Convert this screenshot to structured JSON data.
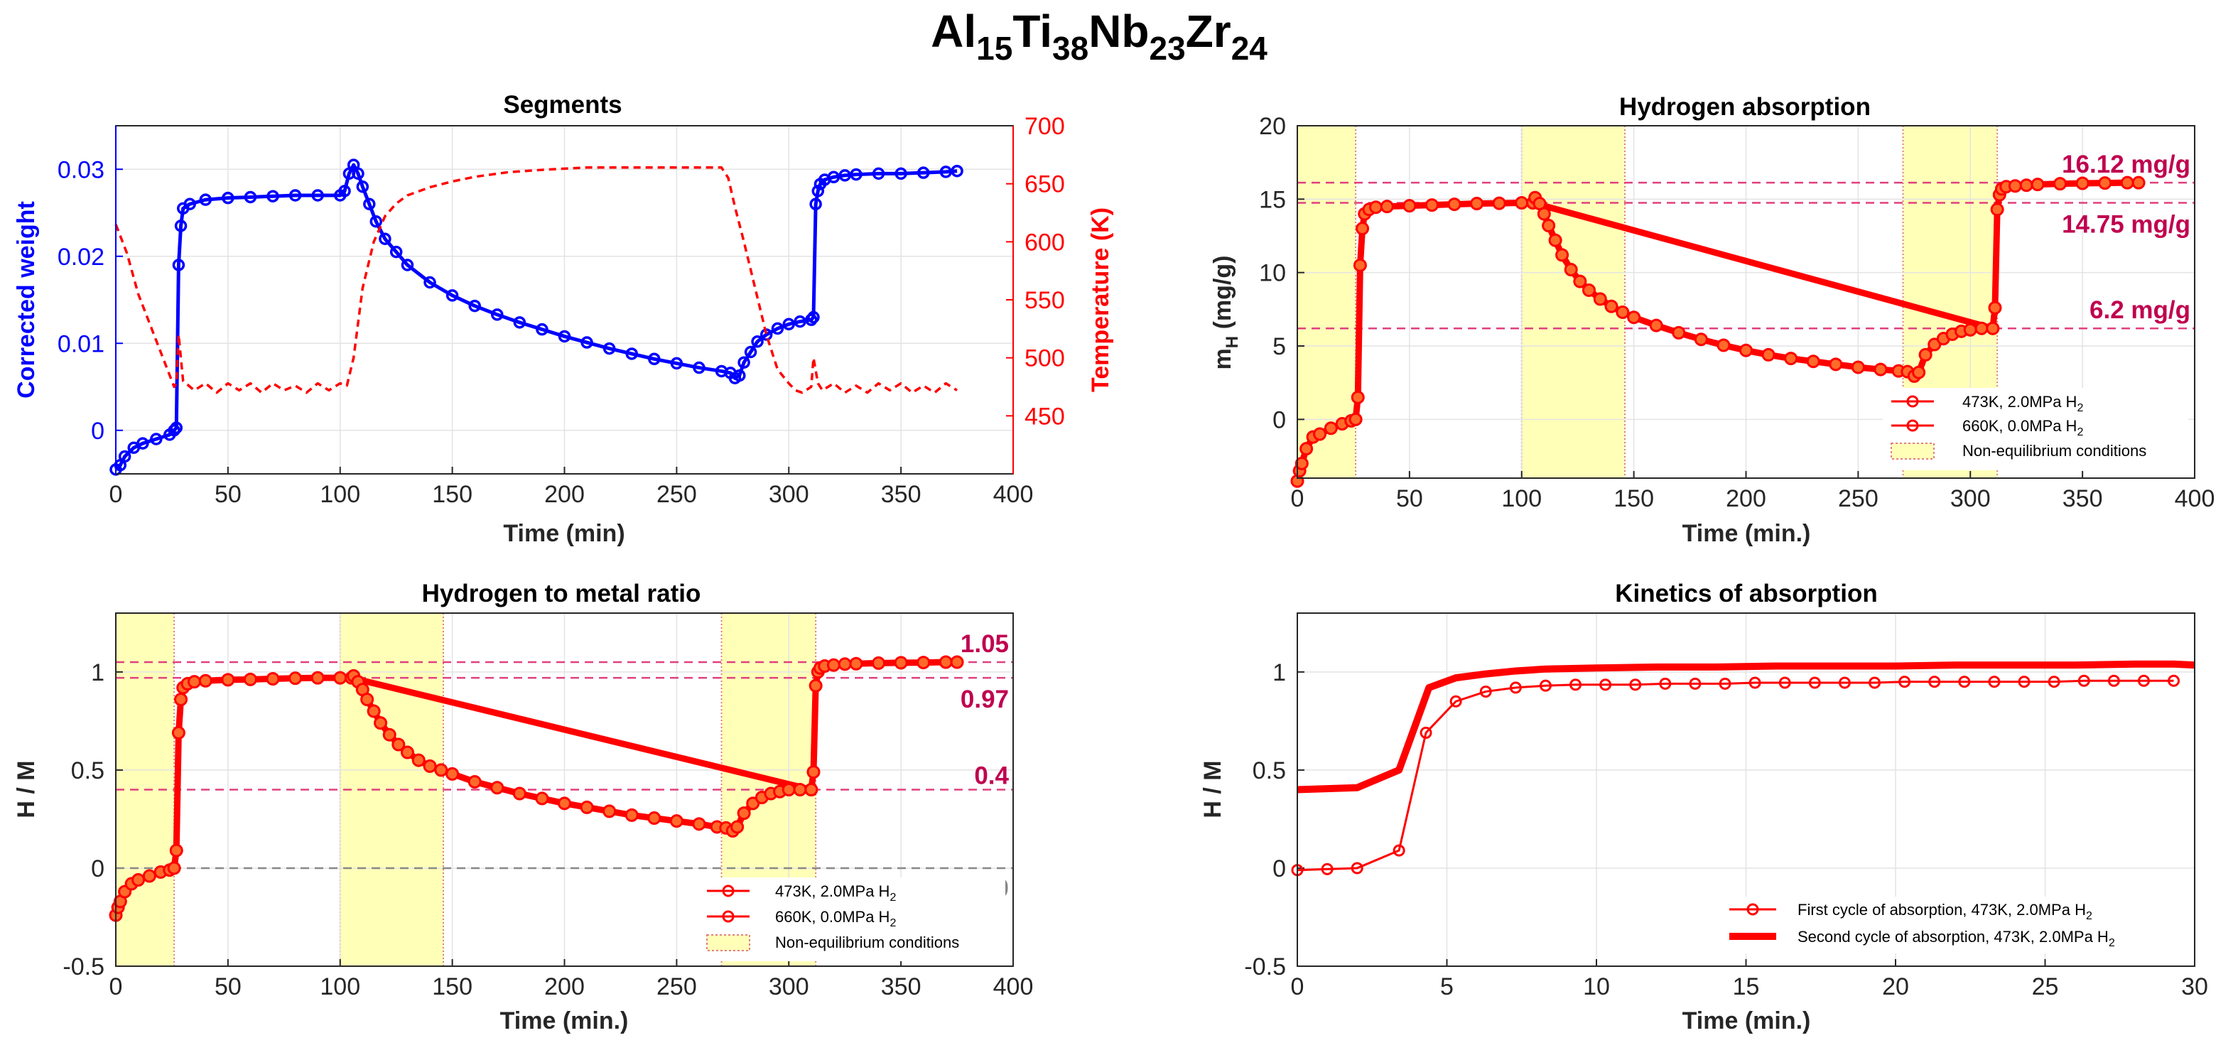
{
  "figure": {
    "title": {
      "base": "Al",
      "s1": "15",
      "el2": "Ti",
      "s2": "38",
      "el3": "Nb",
      "s3": "23",
      "el4": "Zr",
      "s4": "24"
    }
  },
  "colors": {
    "blue": "#0000ff",
    "red": "#ff0000",
    "magenta": "#e0407f",
    "annotation": "#c0004f",
    "gray": "#888888",
    "shade": "#ffffb8",
    "shade_edge": "#e08080"
  },
  "chart_data": [
    {
      "id": "segments",
      "type": "line",
      "title": "Segments",
      "xlabel": "Time (min)",
      "ylabel": "Corrected weight",
      "y2label": "Temperature (K)",
      "xlim": [
        0,
        400
      ],
      "ylim": [
        -0.005,
        0.035
      ],
      "y2lim": [
        400,
        700
      ],
      "xticks": [
        0,
        50,
        100,
        150,
        200,
        250,
        300,
        350,
        400
      ],
      "yticks": [
        0,
        0.01,
        0.02,
        0.03
      ],
      "ytick_labels": [
        "0",
        "0.01",
        "0.02",
        "0.03"
      ],
      "y2ticks": [
        450,
        500,
        550,
        600,
        650,
        700
      ],
      "grid": true,
      "series": [
        {
          "axis": "left",
          "color": "blue",
          "marker": "circle",
          "style": "solid",
          "x": [
            0,
            2,
            4,
            8,
            12,
            18,
            24,
            26,
            27,
            28,
            29,
            30,
            33,
            40,
            50,
            60,
            70,
            80,
            90,
            100,
            102,
            104,
            106,
            108,
            110,
            113,
            116,
            120,
            125,
            130,
            140,
            150,
            160,
            170,
            180,
            190,
            200,
            210,
            220,
            230,
            240,
            250,
            260,
            270,
            274,
            276,
            278,
            280,
            283,
            286,
            290,
            295,
            300,
            305,
            310,
            311,
            312,
            313,
            314,
            316,
            320,
            325,
            330,
            340,
            350,
            360,
            370,
            375
          ],
          "y": [
            -0.0045,
            -0.004,
            -0.003,
            -0.002,
            -0.0015,
            -0.001,
            -0.0005,
            0,
            0.0003,
            0.019,
            0.0235,
            0.0255,
            0.026,
            0.0265,
            0.0267,
            0.0268,
            0.0269,
            0.027,
            0.027,
            0.027,
            0.0275,
            0.0295,
            0.0305,
            0.0295,
            0.028,
            0.026,
            0.024,
            0.022,
            0.0205,
            0.019,
            0.017,
            0.0155,
            0.0143,
            0.0133,
            0.0124,
            0.0116,
            0.0108,
            0.0101,
            0.0094,
            0.0088,
            0.0082,
            0.0077,
            0.0072,
            0.0068,
            0.0066,
            0.006,
            0.0063,
            0.0078,
            0.009,
            0.0102,
            0.011,
            0.0117,
            0.0122,
            0.0125,
            0.0127,
            0.013,
            0.026,
            0.0275,
            0.0283,
            0.0288,
            0.0291,
            0.0293,
            0.0294,
            0.0295,
            0.0295,
            0.0296,
            0.0297,
            0.0298
          ]
        },
        {
          "axis": "right",
          "color": "red",
          "marker": "none",
          "style": "dashed",
          "x": [
            0,
            5,
            10,
            15,
            20,
            24,
            26,
            27,
            28,
            30,
            35,
            40,
            45,
            50,
            55,
            60,
            65,
            70,
            75,
            80,
            85,
            90,
            95,
            100,
            103,
            106,
            110,
            115,
            120,
            125,
            130,
            140,
            150,
            160,
            175,
            190,
            210,
            230,
            250,
            270,
            273,
            276,
            280,
            285,
            290,
            295,
            300,
            303,
            306,
            310,
            311,
            313,
            315,
            320,
            325,
            330,
            335,
            340,
            345,
            350,
            355,
            360,
            365,
            370,
            375
          ],
          "y": [
            615,
            590,
            555,
            530,
            505,
            485,
            475,
            478,
            520,
            480,
            472,
            478,
            470,
            478,
            472,
            478,
            470,
            478,
            472,
            476,
            470,
            478,
            472,
            478,
            476,
            500,
            560,
            600,
            622,
            633,
            640,
            647,
            652,
            656,
            660,
            662,
            664,
            664,
            664,
            664,
            655,
            630,
            600,
            560,
            520,
            490,
            478,
            472,
            470,
            475,
            500,
            478,
            472,
            478,
            470,
            476,
            470,
            478,
            472,
            478,
            470,
            476,
            470,
            478,
            472
          ]
        }
      ]
    },
    {
      "id": "hydrogen_absorption",
      "type": "line",
      "title": "Hydrogen absorption",
      "xlabel": "Time (min.)",
      "ylabel": {
        "base": "m",
        "sub": "H",
        "unit": " (mg/g)"
      },
      "xlim": [
        0,
        400
      ],
      "ylim": [
        -4,
        20
      ],
      "xticks": [
        0,
        50,
        100,
        150,
        200,
        250,
        300,
        350,
        400
      ],
      "yticks": [
        0,
        5,
        10,
        15,
        20
      ],
      "grid": true,
      "shaded_regions": [
        [
          0,
          26
        ],
        [
          100,
          146
        ],
        [
          270,
          312
        ]
      ],
      "reference_lines": [
        {
          "y": 16.12,
          "label": "16.12 mg/g"
        },
        {
          "y": 14.75,
          "label": "14.75 mg/g"
        },
        {
          "y": 6.2,
          "label": "6.2 mg/g"
        }
      ],
      "legend": {
        "position": "lower-right",
        "entries": [
          {
            "text": "473K, 2.0MPa H",
            "sub": "2"
          },
          {
            "text": "660K, 0.0MPa H",
            "sub": "2"
          },
          {
            "text": "Non-equilibrium conditions",
            "sub": ""
          }
        ]
      },
      "series": [
        {
          "name": "473K, 2.0MPa H2",
          "color": "red",
          "marker": "circle",
          "x": [
            0,
            1,
            2,
            4,
            7,
            10,
            15,
            20,
            24,
            26,
            27,
            28,
            29,
            30,
            32,
            35,
            40,
            50,
            60,
            70,
            80,
            90,
            100,
            105,
            310,
            311,
            312,
            313,
            314,
            316,
            320,
            325,
            330,
            340,
            350,
            360,
            370,
            375
          ],
          "y": [
            -4.2,
            -3.5,
            -3,
            -2,
            -1.2,
            -1,
            -0.6,
            -0.3,
            -0.1,
            0,
            1.5,
            10.5,
            13,
            14,
            14.3,
            14.45,
            14.5,
            14.55,
            14.6,
            14.65,
            14.7,
            14.72,
            14.75,
            14.75,
            6.2,
            7.6,
            14.3,
            15.3,
            15.7,
            15.85,
            15.9,
            15.95,
            16,
            16.05,
            16.08,
            16.1,
            16.12,
            16.12
          ]
        },
        {
          "name": "660K, 0.0MPa H2",
          "color": "red",
          "marker": "circle",
          "x": [
            106,
            108,
            110,
            112,
            115,
            118,
            122,
            126,
            130,
            135,
            140,
            145,
            150,
            160,
            170,
            180,
            190,
            200,
            210,
            220,
            230,
            240,
            250,
            260,
            268,
            272,
            275,
            277,
            280,
            284,
            288,
            292,
            296,
            300,
            305,
            310
          ],
          "y": [
            15.1,
            14.7,
            14,
            13.2,
            12.2,
            11.2,
            10.2,
            9.4,
            8.8,
            8.2,
            7.7,
            7.3,
            6.95,
            6.4,
            5.9,
            5.45,
            5.05,
            4.7,
            4.4,
            4.15,
            3.95,
            3.75,
            3.55,
            3.4,
            3.3,
            3.25,
            2.95,
            3.2,
            4.4,
            5.1,
            5.5,
            5.8,
            6,
            6.1,
            6.2,
            6.2
          ]
        }
      ]
    },
    {
      "id": "hydrogen_to_metal_ratio",
      "type": "line",
      "title": "Hydrogen to metal ratio",
      "xlabel": "Time (min.)",
      "ylabel": "H / M",
      "xlim": [
        0,
        400
      ],
      "ylim": [
        -0.5,
        1.3
      ],
      "xticks": [
        0,
        50,
        100,
        150,
        200,
        250,
        300,
        350,
        400
      ],
      "yticks": [
        -0.5,
        0,
        0.5,
        1
      ],
      "ytick_labels": [
        "-0.5",
        "0",
        "0.5",
        "1"
      ],
      "grid": true,
      "shaded_regions": [
        [
          0,
          26
        ],
        [
          100,
          146
        ],
        [
          270,
          312
        ]
      ],
      "reference_lines": [
        {
          "y": 1.05,
          "label": "1.05",
          "color": "magenta"
        },
        {
          "y": 0.97,
          "label": "0.97",
          "color": "magenta"
        },
        {
          "y": 0.4,
          "label": "0.4",
          "color": "magenta"
        },
        {
          "y": 0,
          "label": "0",
          "color": "gray"
        }
      ],
      "legend": {
        "position": "lower-right",
        "entries": [
          {
            "text": "473K, 2.0MPa H",
            "sub": "2"
          },
          {
            "text": "660K, 0.0MPa H",
            "sub": "2"
          },
          {
            "text": "Non-equilibrium conditions",
            "sub": ""
          }
        ]
      },
      "series": [
        {
          "name": "473K, 2.0MPa H2",
          "color": "red",
          "marker": "circle",
          "x": [
            0,
            1,
            2,
            4,
            7,
            10,
            15,
            20,
            24,
            26,
            27,
            28,
            29,
            30,
            32,
            35,
            40,
            50,
            60,
            70,
            80,
            90,
            100,
            105,
            310,
            311,
            312,
            313,
            314,
            316,
            320,
            325,
            330,
            340,
            350,
            360,
            370,
            375
          ],
          "y": [
            -0.24,
            -0.2,
            -0.17,
            -0.12,
            -0.08,
            -0.06,
            -0.04,
            -0.02,
            -0.01,
            0,
            0.09,
            0.69,
            0.86,
            0.92,
            0.94,
            0.95,
            0.955,
            0.96,
            0.962,
            0.965,
            0.968,
            0.97,
            0.97,
            0.97,
            0.4,
            0.49,
            0.93,
            1,
            1.02,
            1.03,
            1.035,
            1.04,
            1.042,
            1.045,
            1.047,
            1.048,
            1.05,
            1.05
          ]
        },
        {
          "name": "660K, 0.0MPa H2",
          "color": "red",
          "marker": "circle",
          "x": [
            106,
            108,
            110,
            112,
            115,
            118,
            122,
            126,
            130,
            135,
            140,
            145,
            150,
            160,
            170,
            180,
            190,
            200,
            210,
            220,
            230,
            240,
            250,
            260,
            268,
            272,
            275,
            277,
            280,
            284,
            288,
            292,
            296,
            300,
            305,
            310
          ],
          "y": [
            0.98,
            0.95,
            0.91,
            0.86,
            0.8,
            0.74,
            0.68,
            0.63,
            0.59,
            0.55,
            0.52,
            0.5,
            0.48,
            0.44,
            0.41,
            0.38,
            0.355,
            0.33,
            0.31,
            0.29,
            0.27,
            0.255,
            0.24,
            0.225,
            0.21,
            0.205,
            0.19,
            0.21,
            0.28,
            0.33,
            0.36,
            0.38,
            0.39,
            0.4,
            0.4,
            0.4
          ]
        }
      ]
    },
    {
      "id": "kinetics_of_absorption",
      "type": "line",
      "title": "Kinetics of absorption",
      "xlabel": "Time (min.)",
      "ylabel": "H / M",
      "xlim": [
        0,
        30
      ],
      "ylim": [
        -0.5,
        1.3
      ],
      "xticks": [
        0,
        5,
        10,
        15,
        20,
        25,
        30
      ],
      "yticks": [
        -0.5,
        0,
        0.5,
        1
      ],
      "ytick_labels": [
        "-0.5",
        "0",
        "0.5",
        "1"
      ],
      "grid": true,
      "legend": {
        "position": "lower-right",
        "entries": [
          {
            "text": "First cycle of absorption, 473K, 2.0MPa H",
            "sub": "2"
          },
          {
            "text": "Second cycle of absorption, 473K, 2.0MPa H",
            "sub": "2"
          }
        ]
      },
      "series": [
        {
          "name": "First cycle of absorption, 473K, 2.0MPa H2",
          "color": "red",
          "marker": "circle",
          "width": "thin",
          "x": [
            0,
            1,
            2,
            3.4,
            4.3,
            5.3,
            6.3,
            7.3,
            8.3,
            9.3,
            10.3,
            11.3,
            12.3,
            13.3,
            14.3,
            15.3,
            16.3,
            17.3,
            18.3,
            19.3,
            20.3,
            21.3,
            22.3,
            23.3,
            24.3,
            25.3,
            26.3,
            27.3,
            28.3,
            29.3
          ],
          "y": [
            -0.01,
            -0.005,
            0,
            0.09,
            0.69,
            0.85,
            0.9,
            0.92,
            0.93,
            0.935,
            0.935,
            0.935,
            0.94,
            0.94,
            0.94,
            0.945,
            0.945,
            0.945,
            0.945,
            0.945,
            0.95,
            0.95,
            0.95,
            0.95,
            0.95,
            0.95,
            0.955,
            0.955,
            0.955,
            0.955
          ]
        },
        {
          "name": "Second cycle of absorption, 473K, 2.0MPa H2",
          "color": "red",
          "marker": "none",
          "width": "thick",
          "x": [
            0,
            2,
            3.4,
            4.4,
            5.3,
            6.3,
            7.3,
            8.3,
            10,
            12,
            14,
            16,
            18,
            20,
            22,
            24,
            26,
            28,
            29.3,
            30
          ],
          "y": [
            0.4,
            0.41,
            0.5,
            0.92,
            0.97,
            0.99,
            1.005,
            1.015,
            1.02,
            1.025,
            1.025,
            1.03,
            1.03,
            1.03,
            1.035,
            1.035,
            1.035,
            1.04,
            1.04,
            1.035
          ]
        }
      ]
    }
  ]
}
